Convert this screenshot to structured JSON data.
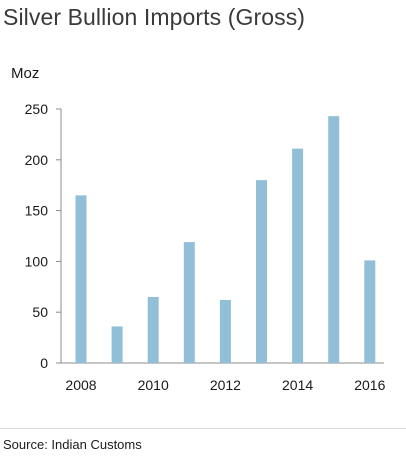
{
  "chart_data": {
    "type": "bar",
    "title": "Silver Bullion Imports (Gross)",
    "ylabel": "Moz",
    "xlabel": "",
    "categories": [
      "2008",
      "2009",
      "2010",
      "2011",
      "2012",
      "2013",
      "2014",
      "2015",
      "2016"
    ],
    "values": [
      165,
      36,
      65,
      119,
      62,
      180,
      211,
      243,
      101
    ],
    "x_tick_labels": [
      "2008",
      "2010",
      "2012",
      "2014",
      "2016"
    ],
    "y_ticks": [
      0,
      50,
      100,
      150,
      200,
      250
    ],
    "y_tick_labels": [
      "0",
      "50",
      "100",
      "150",
      "200",
      "250"
    ],
    "ylim": [
      0,
      250
    ],
    "grid": false,
    "legend": "none",
    "bar_color": "#92bfd8",
    "axis_color": "#8c8c8c"
  },
  "source": "Source: Indian Customs"
}
